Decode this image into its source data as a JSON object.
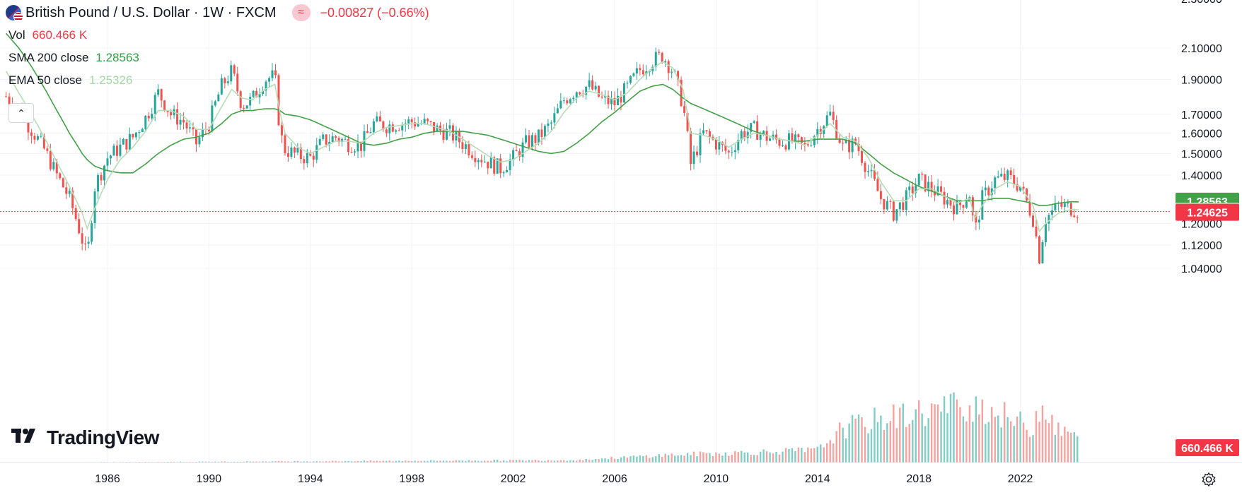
{
  "header": {
    "symbol_title": "British Pound / U.S. Dollar · 1W · FXCM",
    "market_badge": "≈",
    "change": "−0.00827 (−0.66%)",
    "volume": {
      "label": "Vol",
      "value": "660.466 K"
    },
    "sma": {
      "label": "SMA 200 close",
      "value": "1.28563"
    },
    "ema": {
      "label": "EMA 50 close",
      "value": "1.25326"
    },
    "collapse_icon": "chevron-up-icon"
  },
  "logo": {
    "text": "TradingView"
  },
  "settings_icon": "gear-icon",
  "colors": {
    "up": "#26a69a",
    "down": "#ef5350",
    "sma": "#43a047",
    "ema": "#b7dcb5",
    "last_price": "#f23645",
    "grid": "#f0f3fa"
  },
  "price_scale": {
    "labels": [
      "2.10000",
      "1.90000",
      "1.70000",
      "1.60000",
      "1.50000",
      "1.40000",
      "1.20000",
      "1.12000",
      "1.04000"
    ],
    "top_cut_label": "2.30000"
  },
  "price_tags": {
    "sma": "1.28563",
    "ema": "1.25326",
    "last": "1.24625",
    "volume": "660.466 K"
  },
  "time_scale": {
    "labels": [
      "1986",
      "1990",
      "1994",
      "1998",
      "2002",
      "2006",
      "2010",
      "2014",
      "2018",
      "2022"
    ]
  },
  "chart_data": {
    "type": "line",
    "title": "British Pound / U.S. Dollar · 1W · FXCM",
    "note": "Weekly candlesticks approximated from the close path; values read off the log price axis",
    "x": [
      1982.0,
      1982.5,
      1983.0,
      1983.5,
      1984.0,
      1984.5,
      1985.0,
      1985.2,
      1985.5,
      1986.0,
      1986.5,
      1987.0,
      1987.5,
      1988.0,
      1988.5,
      1989.0,
      1989.5,
      1990.0,
      1990.5,
      1990.9,
      1991.3,
      1991.7,
      1992.2,
      1992.6,
      1992.8,
      1993.0,
      1993.5,
      1994.0,
      1994.5,
      1995.0,
      1995.5,
      1996.0,
      1996.5,
      1997.0,
      1997.5,
      1998.0,
      1998.5,
      1999.0,
      1999.5,
      2000.0,
      2000.5,
      2001.0,
      2001.5,
      2002.0,
      2002.5,
      2003.0,
      2003.5,
      2004.0,
      2004.5,
      2005.0,
      2005.5,
      2006.0,
      2006.5,
      2007.0,
      2007.5,
      2007.9,
      2008.3,
      2008.7,
      2009.0,
      2009.5,
      2010.0,
      2010.5,
      2011.0,
      2011.5,
      2012.0,
      2012.5,
      2013.0,
      2013.5,
      2014.0,
      2014.5,
      2015.0,
      2015.5,
      2016.0,
      2016.5,
      2017.0,
      2017.5,
      2018.0,
      2018.5,
      2019.0,
      2019.5,
      2020.0,
      2020.2,
      2020.5,
      2021.0,
      2021.5,
      2022.0,
      2022.5,
      2022.75,
      2023.0,
      2023.5,
      2024.0,
      2024.3
    ],
    "series": [
      {
        "name": "Close",
        "values": [
          1.8,
          1.72,
          1.62,
          1.52,
          1.4,
          1.3,
          1.14,
          1.07,
          1.35,
          1.48,
          1.53,
          1.58,
          1.68,
          1.82,
          1.7,
          1.66,
          1.55,
          1.65,
          1.86,
          1.95,
          1.75,
          1.78,
          1.9,
          1.92,
          1.6,
          1.52,
          1.49,
          1.48,
          1.56,
          1.58,
          1.55,
          1.54,
          1.65,
          1.64,
          1.65,
          1.66,
          1.65,
          1.62,
          1.6,
          1.55,
          1.5,
          1.46,
          1.43,
          1.48,
          1.55,
          1.58,
          1.65,
          1.78,
          1.84,
          1.86,
          1.78,
          1.76,
          1.85,
          1.96,
          2.02,
          2.05,
          1.95,
          1.75,
          1.45,
          1.6,
          1.55,
          1.5,
          1.6,
          1.62,
          1.58,
          1.56,
          1.56,
          1.53,
          1.62,
          1.7,
          1.53,
          1.55,
          1.42,
          1.3,
          1.24,
          1.3,
          1.38,
          1.34,
          1.3,
          1.26,
          1.32,
          1.16,
          1.3,
          1.38,
          1.39,
          1.35,
          1.22,
          1.08,
          1.22,
          1.27,
          1.26,
          1.25
        ]
      },
      {
        "name": "SMA 200 close",
        "values": [
          2.2,
          2.1,
          1.98,
          1.85,
          1.72,
          1.6,
          1.5,
          1.47,
          1.44,
          1.42,
          1.41,
          1.41,
          1.45,
          1.5,
          1.54,
          1.57,
          1.58,
          1.6,
          1.65,
          1.7,
          1.72,
          1.72,
          1.73,
          1.73,
          1.72,
          1.7,
          1.69,
          1.67,
          1.64,
          1.61,
          1.58,
          1.55,
          1.54,
          1.55,
          1.57,
          1.58,
          1.6,
          1.61,
          1.61,
          1.61,
          1.6,
          1.59,
          1.57,
          1.55,
          1.53,
          1.51,
          1.5,
          1.51,
          1.55,
          1.6,
          1.66,
          1.71,
          1.77,
          1.83,
          1.86,
          1.87,
          1.84,
          1.79,
          1.76,
          1.73,
          1.7,
          1.67,
          1.64,
          1.61,
          1.59,
          1.57,
          1.56,
          1.56,
          1.57,
          1.57,
          1.57,
          1.55,
          1.5,
          1.45,
          1.41,
          1.38,
          1.35,
          1.33,
          1.31,
          1.29,
          1.29,
          1.29,
          1.29,
          1.3,
          1.3,
          1.29,
          1.28,
          1.27,
          1.27,
          1.28,
          1.286,
          1.2856
        ]
      },
      {
        "name": "EMA 50 close",
        "values": [
          1.95,
          1.82,
          1.7,
          1.58,
          1.46,
          1.35,
          1.24,
          1.18,
          1.26,
          1.38,
          1.47,
          1.53,
          1.61,
          1.72,
          1.72,
          1.69,
          1.62,
          1.62,
          1.74,
          1.84,
          1.79,
          1.78,
          1.84,
          1.87,
          1.71,
          1.6,
          1.53,
          1.5,
          1.53,
          1.56,
          1.56,
          1.55,
          1.6,
          1.63,
          1.64,
          1.65,
          1.65,
          1.63,
          1.61,
          1.57,
          1.53,
          1.49,
          1.46,
          1.47,
          1.51,
          1.55,
          1.61,
          1.71,
          1.79,
          1.83,
          1.81,
          1.78,
          1.82,
          1.9,
          1.97,
          2.01,
          1.97,
          1.84,
          1.6,
          1.59,
          1.57,
          1.53,
          1.57,
          1.6,
          1.59,
          1.57,
          1.56,
          1.54,
          1.59,
          1.65,
          1.58,
          1.56,
          1.48,
          1.37,
          1.29,
          1.29,
          1.34,
          1.34,
          1.31,
          1.28,
          1.3,
          1.22,
          1.27,
          1.34,
          1.37,
          1.35,
          1.27,
          1.17,
          1.2,
          1.24,
          1.255,
          1.2533
        ]
      }
    ],
    "volume_profile": {
      "name": "Vol",
      "x": [
        1982,
        2004.5,
        2008,
        2014,
        2015,
        2016.5,
        2020.2,
        2022.5,
        2022.8,
        2023.5,
        2024.3
      ],
      "relative_height": [
        0.0,
        0.04,
        0.12,
        0.2,
        0.55,
        0.7,
        0.95,
        0.55,
        1.0,
        0.5,
        0.45
      ]
    },
    "y_scale": "log",
    "ylim": [
      0.97,
      2.32
    ],
    "xlim": [
      1982.0,
      2025.0
    ],
    "last_price": 1.24625,
    "grid": true
  }
}
